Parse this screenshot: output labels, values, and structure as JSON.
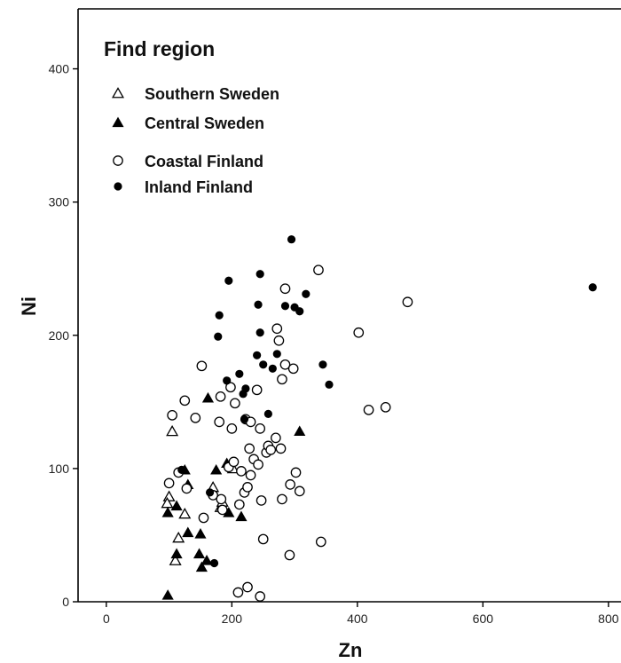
{
  "chart_data": {
    "type": "scatter",
    "title": "",
    "xlabel": "Zn",
    "ylabel": "Ni",
    "xlim": [
      -45,
      820
    ],
    "ylim": [
      0,
      445
    ],
    "xticks": [
      0,
      200,
      400,
      600,
      800
    ],
    "yticks": [
      0,
      100,
      200,
      300,
      400
    ],
    "grid": false,
    "legend": {
      "title": "Find region",
      "placement": "top-left"
    },
    "series": [
      {
        "name": "Southern Sweden",
        "marker": "triangle-open",
        "points": [
          [
            105,
            128
          ],
          [
            100,
            79
          ],
          [
            97,
            74
          ],
          [
            110,
            31
          ],
          [
            115,
            48
          ],
          [
            125,
            66
          ],
          [
            170,
            86
          ],
          [
            182,
            71
          ],
          [
            185,
            75
          ],
          [
            202,
            100
          ]
        ]
      },
      {
        "name": "Central Sweden",
        "marker": "triangle-filled",
        "points": [
          [
            98,
            67
          ],
          [
            98,
            5
          ],
          [
            112,
            72
          ],
          [
            112,
            36
          ],
          [
            125,
            99
          ],
          [
            130,
            88
          ],
          [
            130,
            52
          ],
          [
            148,
            36
          ],
          [
            150,
            51
          ],
          [
            152,
            26
          ],
          [
            160,
            31
          ],
          [
            162,
            153
          ],
          [
            175,
            99
          ],
          [
            192,
            104
          ],
          [
            195,
            67
          ],
          [
            215,
            64
          ],
          [
            308,
            128
          ]
        ]
      },
      {
        "name": "Coastal Finland",
        "marker": "circle-open",
        "points": [
          [
            100,
            89
          ],
          [
            105,
            140
          ],
          [
            115,
            97
          ],
          [
            125,
            151
          ],
          [
            128,
            85
          ],
          [
            142,
            138
          ],
          [
            152,
            177
          ],
          [
            155,
            63
          ],
          [
            170,
            80
          ],
          [
            180,
            135
          ],
          [
            182,
            154
          ],
          [
            183,
            77
          ],
          [
            185,
            69
          ],
          [
            195,
            101
          ],
          [
            198,
            161
          ],
          [
            200,
            130
          ],
          [
            203,
            105
          ],
          [
            205,
            149
          ],
          [
            210,
            7
          ],
          [
            212,
            73
          ],
          [
            215,
            98
          ],
          [
            220,
            82
          ],
          [
            222,
            137
          ],
          [
            225,
            86
          ],
          [
            225,
            11
          ],
          [
            228,
            115
          ],
          [
            230,
            95
          ],
          [
            230,
            135
          ],
          [
            235,
            107
          ],
          [
            240,
            159
          ],
          [
            242,
            103
          ],
          [
            245,
            130
          ],
          [
            245,
            4
          ],
          [
            247,
            76
          ],
          [
            250,
            47
          ],
          [
            255,
            112
          ],
          [
            258,
            117
          ],
          [
            262,
            114
          ],
          [
            270,
            123
          ],
          [
            272,
            205
          ],
          [
            275,
            196
          ],
          [
            278,
            115
          ],
          [
            280,
            77
          ],
          [
            280,
            167
          ],
          [
            285,
            178
          ],
          [
            285,
            235
          ],
          [
            292,
            35
          ],
          [
            293,
            88
          ],
          [
            298,
            175
          ],
          [
            302,
            97
          ],
          [
            308,
            83
          ],
          [
            338,
            249
          ],
          [
            342,
            45
          ],
          [
            402,
            202
          ],
          [
            418,
            144
          ],
          [
            445,
            146
          ],
          [
            480,
            225
          ]
        ]
      },
      {
        "name": "Inland Finland",
        "marker": "circle-filled",
        "points": [
          [
            120,
            99
          ],
          [
            165,
            82
          ],
          [
            172,
            29
          ],
          [
            178,
            199
          ],
          [
            180,
            215
          ],
          [
            192,
            166
          ],
          [
            195,
            241
          ],
          [
            212,
            171
          ],
          [
            218,
            156
          ],
          [
            220,
            137
          ],
          [
            222,
            160
          ],
          [
            240,
            185
          ],
          [
            242,
            223
          ],
          [
            245,
            246
          ],
          [
            245,
            202
          ],
          [
            250,
            178
          ],
          [
            258,
            141
          ],
          [
            265,
            175
          ],
          [
            272,
            186
          ],
          [
            285,
            222
          ],
          [
            295,
            272
          ],
          [
            300,
            221
          ],
          [
            308,
            218
          ],
          [
            318,
            231
          ],
          [
            345,
            178
          ],
          [
            355,
            163
          ],
          [
            775,
            236
          ]
        ]
      }
    ]
  }
}
